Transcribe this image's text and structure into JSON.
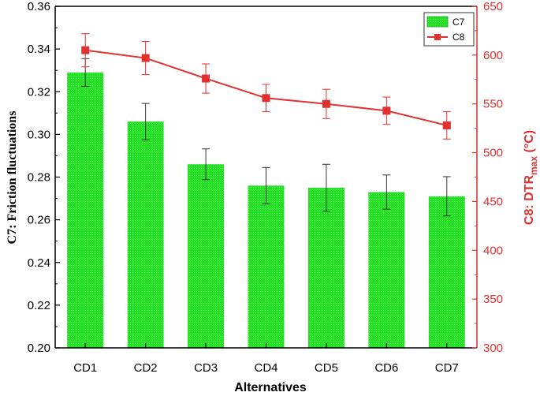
{
  "chart_data": {
    "type": "bar+line",
    "xlabel": "Alternatives",
    "categories": [
      "CD1",
      "CD2",
      "CD3",
      "CD4",
      "CD5",
      "CD6",
      "CD7"
    ],
    "left_axis": {
      "label": "C7: Friction fluctuations",
      "ylim": [
        0.2,
        0.36
      ],
      "ticks": [
        "0.20",
        "0.22",
        "0.24",
        "0.26",
        "0.28",
        "0.30",
        "0.32",
        "0.34",
        "0.36"
      ]
    },
    "right_axis": {
      "label_main": "C8: DTR",
      "label_sub": "max",
      "label_unit": " (°C)",
      "ylim": [
        300,
        650
      ],
      "ticks": [
        "300",
        "350",
        "400",
        "450",
        "500",
        "550",
        "600",
        "650"
      ]
    },
    "series": [
      {
        "name": "C7",
        "type": "bar",
        "axis": "left",
        "color": "#22e022",
        "values": [
          0.329,
          0.306,
          0.286,
          0.276,
          0.275,
          0.273,
          0.271
        ],
        "errors": [
          0.0065,
          0.0085,
          0.0072,
          0.0085,
          0.011,
          0.008,
          0.0092
        ]
      },
      {
        "name": "C8",
        "type": "line",
        "axis": "right",
        "color": "#e03030",
        "values": [
          605,
          597,
          576,
          556,
          550,
          543,
          528
        ],
        "errors": [
          17,
          17,
          15,
          14,
          15,
          14,
          14
        ]
      }
    ],
    "legend": {
      "position": "top-right"
    }
  }
}
